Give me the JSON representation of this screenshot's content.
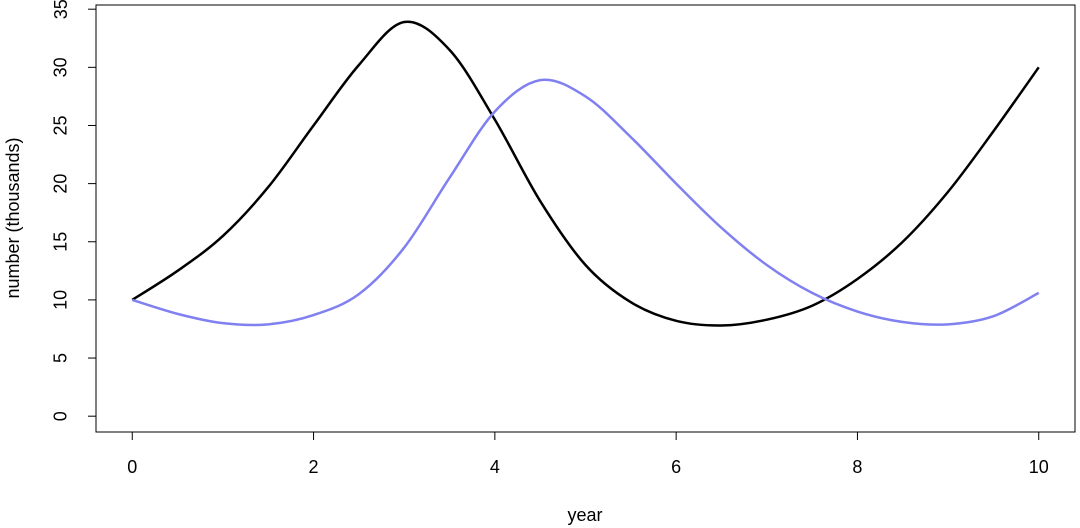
{
  "chart_data": {
    "type": "line",
    "xlabel": "year",
    "ylabel": "number (thousands)",
    "x": [
      0,
      0.5,
      1,
      1.5,
      2,
      2.5,
      3,
      3.5,
      4,
      4.5,
      5,
      5.5,
      6,
      6.5,
      7,
      7.5,
      8,
      8.5,
      9,
      9.5,
      10
    ],
    "series": [
      {
        "color": "#000000",
        "values": [
          10,
          12.5,
          15.5,
          19.7,
          25,
          30.2,
          33.9,
          31.5,
          25.5,
          18.5,
          13,
          9.8,
          8.2,
          7.8,
          8.3,
          9.5,
          11.8,
          15,
          19.3,
          24.5,
          30
        ]
      },
      {
        "color": "#8080f0",
        "values": [
          10,
          8.8,
          8,
          7.9,
          8.7,
          10.5,
          14.5,
          20.5,
          26.2,
          28.9,
          27.5,
          24,
          20,
          16.2,
          13,
          10.6,
          9,
          8.1,
          7.9,
          8.6,
          10.6
        ]
      }
    ],
    "xlim": [
      -0.4,
      10.4
    ],
    "ylim": [
      -1.36,
      35.36
    ],
    "xticks": [
      0,
      2,
      4,
      6,
      8,
      10
    ],
    "yticks": [
      0,
      5,
      10,
      15,
      20,
      25,
      30,
      35
    ],
    "grid": false
  }
}
